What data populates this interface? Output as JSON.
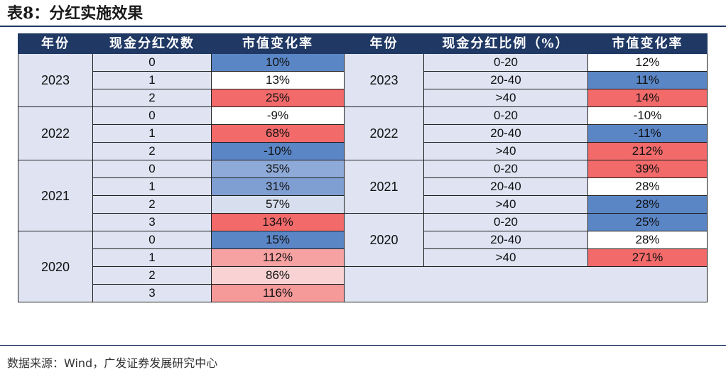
{
  "title": "表8：分红实施效果",
  "source": "数据来源：Wind，广发证券发展研究中心",
  "headers": {
    "left": [
      "年份",
      "现金分红次数",
      "市值变化率"
    ],
    "right": [
      "年份",
      "现金分红比例（%）",
      "市值变化率"
    ]
  },
  "left_groups": [
    {
      "year": "2023",
      "rows": [
        {
          "count": "0",
          "rate": "10%",
          "color": "#5b86c6"
        },
        {
          "count": "1",
          "rate": "13%",
          "color": "#ffffff"
        },
        {
          "count": "2",
          "rate": "25%",
          "color": "#f26a6a"
        }
      ]
    },
    {
      "year": "2022",
      "rows": [
        {
          "count": "0",
          "rate": "-9%",
          "color": "#ffffff"
        },
        {
          "count": "1",
          "rate": "68%",
          "color": "#f26a6a"
        },
        {
          "count": "2",
          "rate": "-10%",
          "color": "#5b86c6"
        }
      ]
    },
    {
      "year": "2021",
      "rows": [
        {
          "count": "0",
          "rate": "35%",
          "color": "#8eaad8"
        },
        {
          "count": "1",
          "rate": "31%",
          "color": "#7f9fd3"
        },
        {
          "count": "2",
          "rate": "57%",
          "color": "#d7deee"
        },
        {
          "count": "3",
          "rate": "134%",
          "color": "#f26a6a"
        }
      ]
    },
    {
      "year": "2020",
      "rows": [
        {
          "count": "0",
          "rate": "15%",
          "color": "#5b86c6"
        },
        {
          "count": "1",
          "rate": "112%",
          "color": "#f6a2a2"
        },
        {
          "count": "2",
          "rate": "86%",
          "color": "#f9d3d3"
        },
        {
          "count": "3",
          "rate": "116%",
          "color": "#f59999"
        }
      ]
    }
  ],
  "right_groups": [
    {
      "year": "2023",
      "rows": [
        {
          "ratio": "0-20",
          "rate": "12%",
          "color": "#ffffff"
        },
        {
          "ratio": "20-40",
          "rate": "11%",
          "color": "#5b86c6"
        },
        {
          "ratio": ">40",
          "rate": "14%",
          "color": "#f26a6a"
        }
      ]
    },
    {
      "year": "2022",
      "rows": [
        {
          "ratio": "0-20",
          "rate": "-10%",
          "color": "#ffffff"
        },
        {
          "ratio": "20-40",
          "rate": "-11%",
          "color": "#5b86c6"
        },
        {
          "ratio": ">40",
          "rate": "212%",
          "color": "#f26a6a"
        }
      ]
    },
    {
      "year": "2021",
      "rows": [
        {
          "ratio": "0-20",
          "rate": "39%",
          "color": "#f26a6a"
        },
        {
          "ratio": "20-40",
          "rate": "28%",
          "color": "#ffffff"
        },
        {
          "ratio": ">40",
          "rate": "28%",
          "color": "#5b86c6"
        }
      ]
    },
    {
      "year": "2020",
      "rows": [
        {
          "ratio": "0-20",
          "rate": "25%",
          "color": "#5b86c6"
        },
        {
          "ratio": "20-40",
          "rate": "28%",
          "color": "#ffffff"
        },
        {
          "ratio": ">40",
          "rate": "271%",
          "color": "#f26a6a"
        }
      ]
    }
  ]
}
